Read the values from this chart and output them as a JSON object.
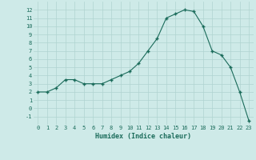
{
  "x": [
    0,
    1,
    2,
    3,
    4,
    5,
    6,
    7,
    8,
    9,
    10,
    11,
    12,
    13,
    14,
    15,
    16,
    17,
    18,
    19,
    20,
    21,
    22,
    23
  ],
  "y": [
    2.0,
    2.0,
    2.5,
    3.5,
    3.5,
    3.0,
    3.0,
    3.0,
    3.5,
    4.0,
    4.5,
    5.5,
    7.0,
    8.5,
    11.0,
    11.5,
    12.0,
    11.8,
    10.0,
    7.0,
    6.5,
    5.0,
    2.0,
    -1.5
  ],
  "xlabel": "Humidex (Indice chaleur)",
  "xlim": [
    -0.5,
    23.5
  ],
  "ylim": [
    -2,
    13
  ],
  "yticks": [
    -1,
    0,
    1,
    2,
    3,
    4,
    5,
    6,
    7,
    8,
    9,
    10,
    11,
    12
  ],
  "xticks": [
    0,
    1,
    2,
    3,
    4,
    5,
    6,
    7,
    8,
    9,
    10,
    11,
    12,
    13,
    14,
    15,
    16,
    17,
    18,
    19,
    20,
    21,
    22,
    23
  ],
  "line_color": "#1a6b5a",
  "marker": "+",
  "bg_color": "#ceeae8",
  "grid_color": "#b0d4d0",
  "label_color": "#1a6b5a",
  "font_family": "monospace"
}
